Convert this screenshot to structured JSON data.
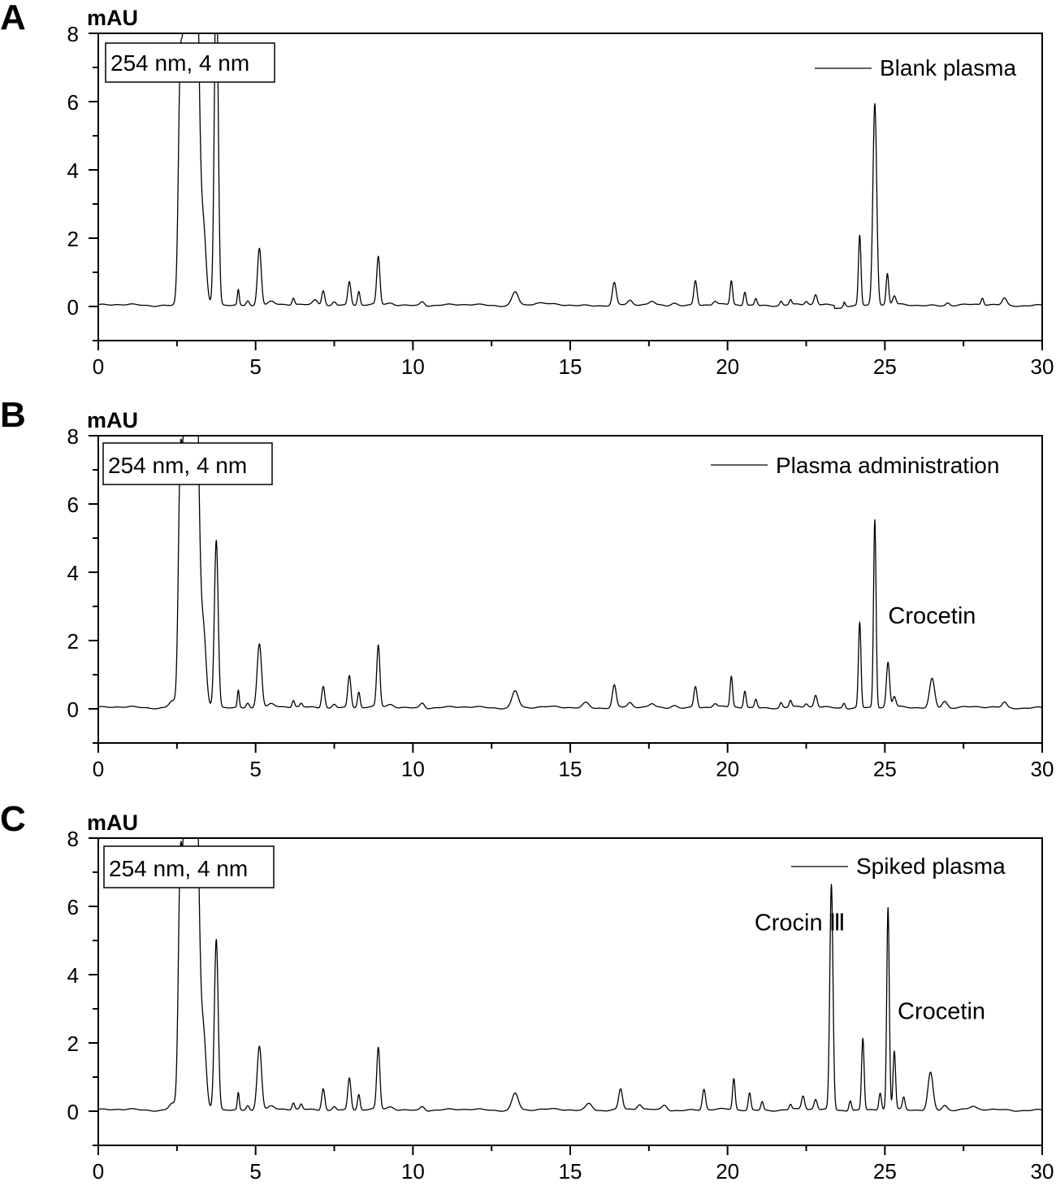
{
  "chart_data": [
    {
      "type": "line",
      "panel_label": "A",
      "ylabel": "mAU",
      "xlim": [
        0,
        30
      ],
      "ylim": [
        -1,
        8
      ],
      "xticks": [
        0,
        5,
        10,
        15,
        20,
        25,
        30
      ],
      "yticks": [
        0,
        2,
        4,
        6,
        8
      ],
      "condition_box": "254 nm, 4 nm",
      "legend": {
        "label": "Blank plasma",
        "position": "top-right"
      },
      "annotations": [],
      "series": [
        {
          "name": "Blank plasma",
          "peaks": [
            [
              2.6,
              5,
              0.06
            ],
            [
              2.85,
              14,
              0.13
            ],
            [
              3.1,
              11,
              0.1
            ],
            [
              3.35,
              2,
              0.08
            ],
            [
              3.75,
              10,
              0.06
            ],
            [
              4.45,
              0.45,
              0.03
            ],
            [
              4.75,
              0.15,
              0.05
            ],
            [
              5.12,
              1.7,
              0.06
            ],
            [
              5.5,
              0.1,
              0.1
            ],
            [
              6.2,
              0.2,
              0.04
            ],
            [
              6.9,
              0.15,
              0.08
            ],
            [
              7.15,
              0.45,
              0.05
            ],
            [
              7.5,
              0.12,
              0.06
            ],
            [
              7.98,
              0.7,
              0.05
            ],
            [
              8.28,
              0.4,
              0.04
            ],
            [
              8.9,
              1.4,
              0.05
            ],
            [
              9.3,
              0.05,
              0.1
            ],
            [
              10.3,
              0.12,
              0.07
            ],
            [
              13.25,
              0.4,
              0.1
            ],
            [
              14.0,
              0.05,
              0.2
            ],
            [
              16.4,
              0.65,
              0.06
            ],
            [
              16.9,
              0.12,
              0.07
            ],
            [
              17.6,
              0.1,
              0.08
            ],
            [
              18.3,
              0.08,
              0.1
            ],
            [
              18.98,
              0.72,
              0.05
            ],
            [
              19.6,
              0.1,
              0.06
            ],
            [
              20.12,
              0.7,
              0.04
            ],
            [
              20.55,
              0.4,
              0.04
            ],
            [
              20.9,
              0.2,
              0.04
            ],
            [
              21.7,
              0.12,
              0.04
            ],
            [
              22.0,
              0.15,
              0.04
            ],
            [
              22.5,
              0.1,
              0.05
            ],
            [
              22.8,
              0.3,
              0.05
            ],
            [
              23.7,
              0.12,
              0.04
            ],
            [
              24.2,
              2.05,
              0.04
            ],
            [
              24.68,
              5.9,
              0.06
            ],
            [
              25.08,
              0.9,
              0.04
            ],
            [
              25.3,
              0.25,
              0.05
            ],
            [
              27.0,
              0.08,
              0.06
            ],
            [
              28.1,
              0.2,
              0.04
            ],
            [
              28.8,
              0.2,
              0.07
            ]
          ]
        }
      ]
    },
    {
      "type": "line",
      "panel_label": "B",
      "ylabel": "mAU",
      "xlim": [
        0,
        30
      ],
      "ylim": [
        -1,
        8
      ],
      "xticks": [
        0,
        5,
        10,
        15,
        20,
        25,
        30
      ],
      "yticks": [
        0,
        2,
        4,
        6,
        8
      ],
      "condition_box": "254 nm, 4 nm",
      "legend": {
        "label": "Plasma administration",
        "position": "top-right"
      },
      "annotations": [
        {
          "text": "Crocetin",
          "x": 26.5,
          "y": 2.5
        }
      ],
      "series": [
        {
          "name": "Plasma administration",
          "peaks": [
            [
              2.35,
              0.2,
              0.1
            ],
            [
              2.6,
              5.4,
              0.06
            ],
            [
              2.85,
              13,
              0.13
            ],
            [
              3.1,
              10,
              0.1
            ],
            [
              3.35,
              2,
              0.08
            ],
            [
              3.75,
              4.9,
              0.06
            ],
            [
              4.45,
              0.5,
              0.03
            ],
            [
              4.75,
              0.15,
              0.05
            ],
            [
              5.12,
              1.9,
              0.07
            ],
            [
              5.5,
              0.1,
              0.1
            ],
            [
              6.2,
              0.2,
              0.04
            ],
            [
              6.45,
              0.1,
              0.04
            ],
            [
              7.15,
              0.65,
              0.05
            ],
            [
              7.5,
              0.12,
              0.06
            ],
            [
              7.98,
              0.95,
              0.05
            ],
            [
              8.28,
              0.45,
              0.04
            ],
            [
              8.9,
              1.8,
              0.05
            ],
            [
              9.3,
              0.08,
              0.1
            ],
            [
              10.3,
              0.15,
              0.07
            ],
            [
              13.25,
              0.5,
              0.1
            ],
            [
              15.5,
              0.15,
              0.1
            ],
            [
              16.4,
              0.65,
              0.06
            ],
            [
              16.9,
              0.12,
              0.07
            ],
            [
              17.6,
              0.1,
              0.08
            ],
            [
              18.3,
              0.08,
              0.1
            ],
            [
              18.98,
              0.62,
              0.05
            ],
            [
              19.6,
              0.1,
              0.06
            ],
            [
              20.12,
              0.9,
              0.04
            ],
            [
              20.55,
              0.5,
              0.04
            ],
            [
              20.9,
              0.25,
              0.04
            ],
            [
              21.7,
              0.15,
              0.04
            ],
            [
              22.0,
              0.2,
              0.04
            ],
            [
              22.5,
              0.1,
              0.05
            ],
            [
              22.8,
              0.35,
              0.05
            ],
            [
              23.7,
              0.15,
              0.04
            ],
            [
              24.2,
              2.5,
              0.04
            ],
            [
              24.68,
              5.5,
              0.04
            ],
            [
              25.1,
              1.3,
              0.05
            ],
            [
              25.3,
              0.3,
              0.05
            ],
            [
              26.5,
              0.85,
              0.08
            ],
            [
              26.9,
              0.2,
              0.08
            ],
            [
              28.8,
              0.15,
              0.07
            ]
          ]
        }
      ]
    },
    {
      "type": "line",
      "panel_label": "C",
      "ylabel": "mAU",
      "xlim": [
        0,
        30
      ],
      "ylim": [
        -1,
        8
      ],
      "xticks": [
        0,
        5,
        10,
        15,
        20,
        25,
        30
      ],
      "yticks": [
        0,
        2,
        4,
        6,
        8
      ],
      "condition_box": "254 nm, 4 nm",
      "legend": {
        "label": "Spiked plasma",
        "position": "top-right"
      },
      "annotations": [
        {
          "text": "Crocin Ⅲ",
          "x": 22.3,
          "y": 5.3
        },
        {
          "text": "Crocetin",
          "x": 26.8,
          "y": 2.7
        }
      ],
      "series": [
        {
          "name": "Spiked plasma",
          "peaks": [
            [
              2.35,
              0.2,
              0.1
            ],
            [
              2.6,
              5.4,
              0.06
            ],
            [
              2.85,
              13,
              0.13
            ],
            [
              3.1,
              10,
              0.1
            ],
            [
              3.35,
              2,
              0.08
            ],
            [
              3.75,
              5.0,
              0.06
            ],
            [
              4.45,
              0.5,
              0.03
            ],
            [
              4.75,
              0.15,
              0.05
            ],
            [
              5.12,
              1.9,
              0.07
            ],
            [
              5.5,
              0.1,
              0.1
            ],
            [
              6.2,
              0.2,
              0.04
            ],
            [
              6.45,
              0.15,
              0.04
            ],
            [
              7.15,
              0.65,
              0.05
            ],
            [
              7.5,
              0.12,
              0.06
            ],
            [
              7.98,
              0.95,
              0.05
            ],
            [
              8.28,
              0.45,
              0.04
            ],
            [
              8.9,
              1.8,
              0.05
            ],
            [
              9.3,
              0.08,
              0.1
            ],
            [
              10.3,
              0.12,
              0.07
            ],
            [
              13.25,
              0.5,
              0.1
            ],
            [
              15.6,
              0.2,
              0.1
            ],
            [
              16.6,
              0.6,
              0.06
            ],
            [
              17.2,
              0.15,
              0.07
            ],
            [
              18.0,
              0.15,
              0.08
            ],
            [
              19.25,
              0.6,
              0.05
            ],
            [
              20.2,
              0.9,
              0.04
            ],
            [
              20.7,
              0.5,
              0.04
            ],
            [
              21.1,
              0.25,
              0.04
            ],
            [
              22.0,
              0.15,
              0.04
            ],
            [
              22.4,
              0.4,
              0.05
            ],
            [
              22.8,
              0.3,
              0.05
            ],
            [
              23.3,
              6.6,
              0.05
            ],
            [
              23.9,
              0.3,
              0.04
            ],
            [
              24.3,
              2.1,
              0.04
            ],
            [
              24.85,
              0.5,
              0.04
            ],
            [
              25.1,
              5.9,
              0.04
            ],
            [
              25.3,
              1.7,
              0.04
            ],
            [
              25.6,
              0.35,
              0.04
            ],
            [
              26.45,
              1.1,
              0.08
            ],
            [
              26.9,
              0.15,
              0.08
            ],
            [
              27.8,
              0.08,
              0.1
            ]
          ]
        }
      ]
    }
  ]
}
